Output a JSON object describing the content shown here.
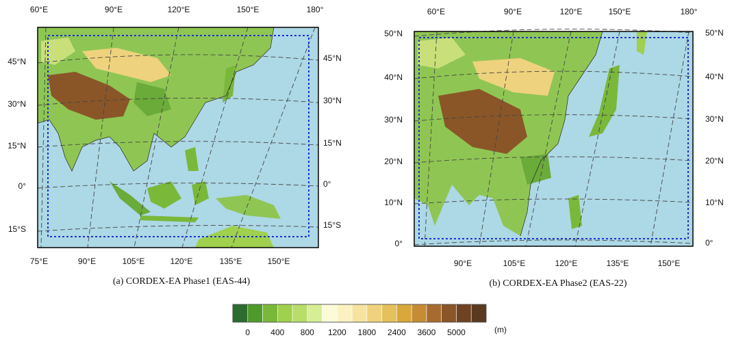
{
  "panel_a": {
    "caption": "(a)  CORDEX-EA  Phase1  (EAS-44)",
    "top_labels": [
      "60°E",
      "90°E",
      "120°E",
      "150°E",
      "180°"
    ],
    "left_labels": [
      "45°N",
      "30°N",
      "15°N",
      "0°",
      "15°S"
    ],
    "right_labels": [
      "45°N",
      "30°N",
      "15°N",
      "0°",
      "15°S"
    ],
    "bottom_labels": [
      "75°E",
      "90°E",
      "105°E",
      "120°E",
      "135°E",
      "150°E"
    ]
  },
  "panel_b": {
    "caption": "(b)  CORDEX-EA  Phase2  (EAS-22)",
    "top_labels": [
      "60°E",
      "90°E",
      "120°E",
      "150°E",
      "180°"
    ],
    "left_labels": [
      "50°N",
      "40°N",
      "30°N",
      "20°N",
      "10°N",
      "0°"
    ],
    "right_labels": [
      "50°N",
      "40°N",
      "30°N",
      "20°N",
      "10°N",
      "0°"
    ],
    "bottom_labels": [
      "90°E",
      "105°E",
      "120°E",
      "135°E",
      "150°E"
    ]
  },
  "colorbar": {
    "unit": "(m)",
    "labels": [
      0,
      400,
      800,
      1200,
      1800,
      2400,
      3600,
      5000
    ],
    "colors": [
      "#2d6b2f",
      "#4e9a2b",
      "#7ab83a",
      "#9fd04e",
      "#b8dd6a",
      "#d6ee96",
      "#fbfbd8",
      "#fbf2c2",
      "#f6e3a0",
      "#efd27d",
      "#e4c15a",
      "#d9a73a",
      "#c58c35",
      "#a76b30",
      "#8a5628",
      "#6f4321",
      "#5a3a1f"
    ]
  }
}
